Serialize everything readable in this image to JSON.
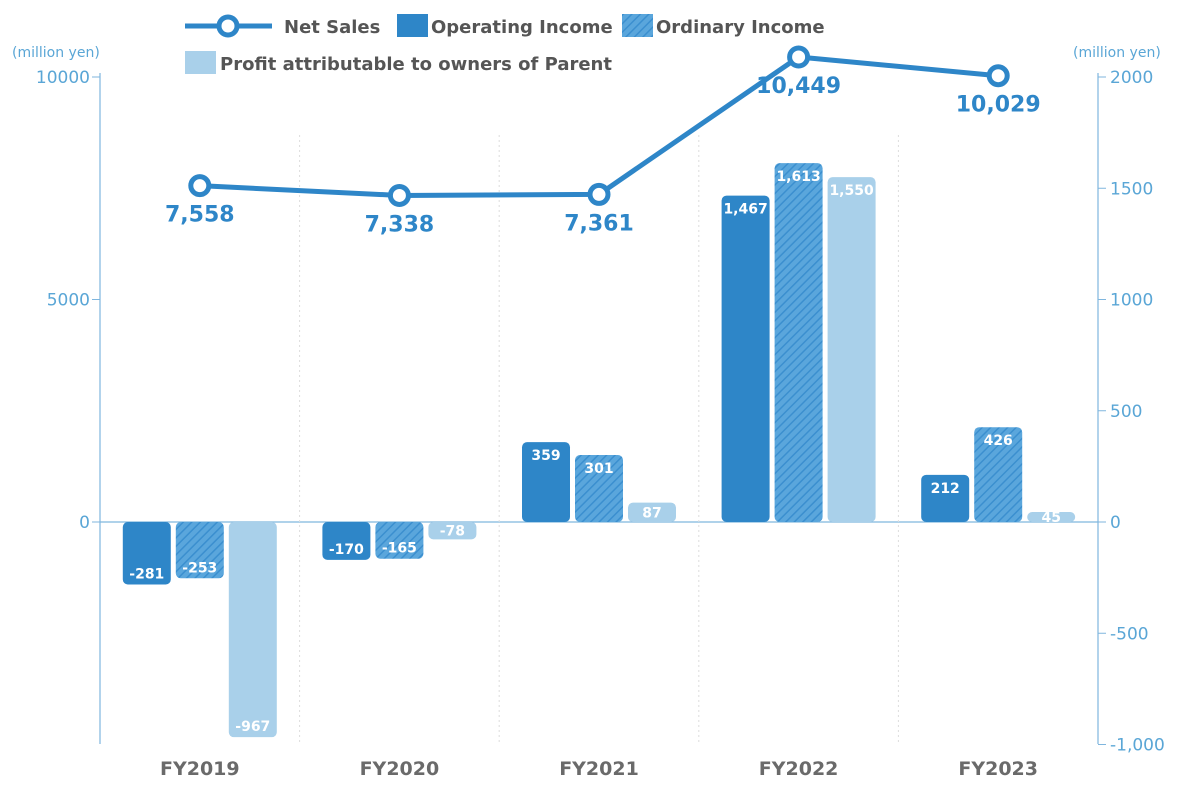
{
  "chart_data": {
    "type": "bar",
    "categories": [
      "FY2019",
      "FY2020",
      "FY2021",
      "FY2022",
      "FY2023"
    ],
    "left_axis": {
      "unit": "(million yen)",
      "ylim": [
        -5000,
        10000
      ],
      "ticks": [
        "10000",
        "5000",
        "0"
      ],
      "tick_values": [
        10000,
        5000,
        0
      ]
    },
    "right_axis": {
      "unit": "(million yen)",
      "ylim": [
        -1000,
        2000
      ],
      "ticks": [
        "2000",
        "1500",
        "1000",
        "500",
        "0",
        "-500",
        "-1,000"
      ],
      "tick_values": [
        2000,
        1500,
        1000,
        500,
        0,
        -500,
        -1000
      ]
    },
    "series": [
      {
        "name": "Net Sales",
        "kind": "line",
        "axis": "left",
        "color": "#2e86c8",
        "values": [
          7558,
          7338,
          7361,
          10449,
          10029
        ],
        "labels": [
          "7,558",
          "7,338",
          "7,361",
          "10,449",
          "10,029"
        ]
      },
      {
        "name": "Operating Income",
        "kind": "bar",
        "axis": "right",
        "color": "#2e86c8",
        "pattern": "solid",
        "values": [
          -281,
          -170,
          359,
          1467,
          212
        ],
        "labels": [
          "-281",
          "-170",
          "359",
          "1,467",
          "212"
        ]
      },
      {
        "name": "Ordinary Income",
        "kind": "bar",
        "axis": "right",
        "color": "#4f9fd8",
        "pattern": "hatched",
        "values": [
          -253,
          -165,
          301,
          1613,
          426
        ],
        "labels": [
          "-253",
          "-165",
          "301",
          "1,613",
          "426"
        ]
      },
      {
        "name": "Profit attributable to owners of Parent",
        "kind": "bar",
        "axis": "right",
        "color": "#a9d0ea",
        "pattern": "solid",
        "values": [
          -967,
          -78,
          87,
          1550,
          45
        ],
        "labels": [
          "-967",
          "-78",
          "87",
          "1,550",
          "45"
        ]
      }
    ],
    "legend_position": "top",
    "grid": false
  }
}
